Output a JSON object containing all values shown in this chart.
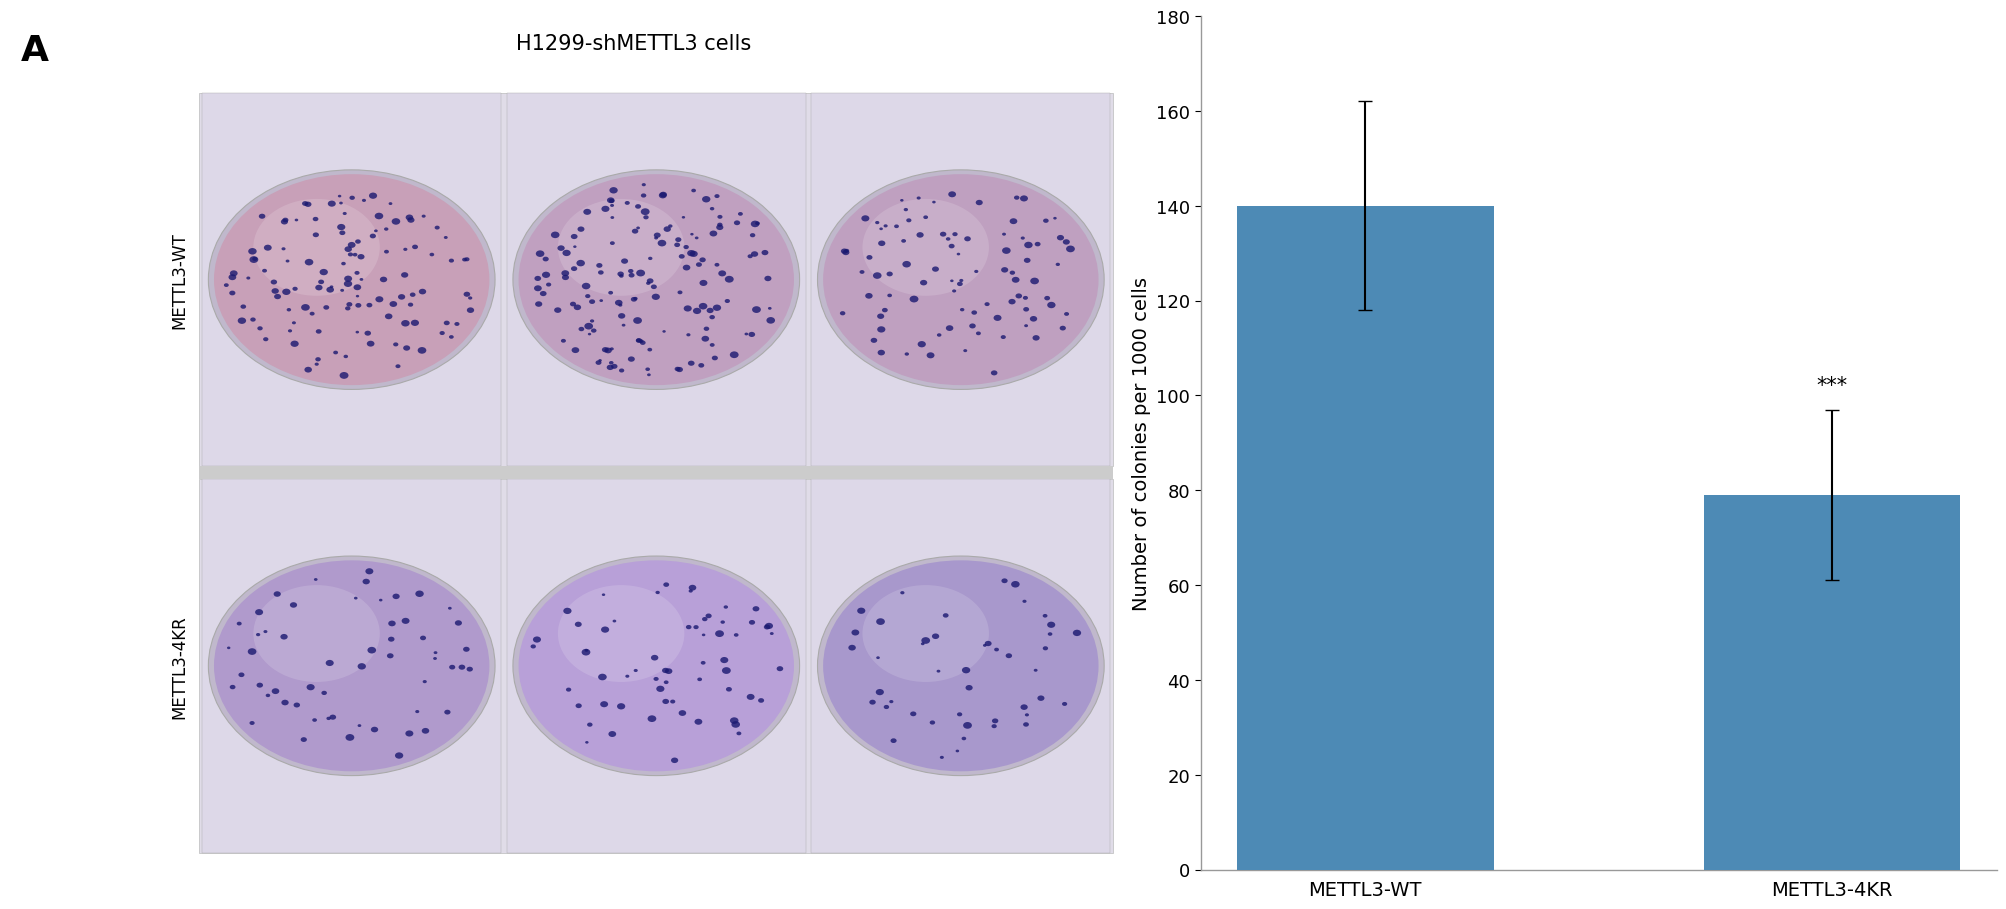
{
  "bar_values": [
    140,
    79
  ],
  "bar_errors_upper": [
    22,
    18
  ],
  "bar_errors_lower": [
    22,
    18
  ],
  "bar_colors": [
    "#4d8ab5",
    "#4d8ab5"
  ],
  "categories": [
    "METTL3-WT",
    "METTL3-4KR"
  ],
  "ylabel": "Number of colonies per 1000 cells",
  "ylim": [
    0,
    180
  ],
  "yticks": [
    0,
    20,
    40,
    60,
    80,
    100,
    120,
    140,
    160,
    180
  ],
  "significance_label": "***",
  "panel_label": "A",
  "title": "H1299-shMETTL3 cells",
  "row_labels": [
    "METTL3-WT",
    "METTL3-4KR"
  ],
  "background_color": "#ffffff",
  "bar_width": 0.55,
  "error_capsize": 5,
  "error_linewidth": 1.5,
  "sig_fontsize": 15,
  "ylabel_fontsize": 14,
  "tick_fontsize": 13,
  "xlabel_fontsize": 14,
  "panel_label_fontsize": 26,
  "title_fontsize": 15,
  "row_label_fontsize": 12,
  "dish_colors_row0": [
    "#c8a0b8",
    "#c0a0c0",
    "#bfa0c0"
  ],
  "dish_colors_row1": [
    "#b09acc",
    "#b8a0d8",
    "#a898cc"
  ],
  "dish_rim_color": "#aaaaaa",
  "dish_bg_color": "#d0c0dc",
  "colony_color": "#1a1870",
  "n_colonies_row0": [
    120,
    150,
    90
  ],
  "n_colonies_row1": [
    55,
    60,
    45
  ],
  "row_sep_color": "#cccccc",
  "img_bg_color": "#e8e0ec"
}
